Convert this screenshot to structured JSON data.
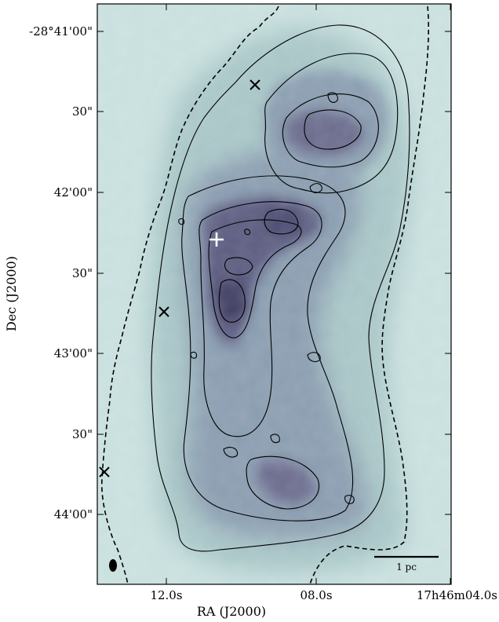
{
  "figure": {
    "y_axis_label": "Dec (J2000)",
    "x_axis_label": "RA (J2000)",
    "y_ticks": [
      "-28°41'00\"",
      "30\"",
      "42'00\"",
      "30\"",
      "43'00\"",
      "30\"",
      "44'00\""
    ],
    "x_ticks": [
      "12.0s",
      "08.0s",
      "17h46m04.0s"
    ],
    "scalebar_label": "1 pc",
    "colormap": {
      "background": "#c9e0df",
      "low": "#a9c6c7",
      "mid": "#8a9db0",
      "high": "#5c5c80",
      "peak": "#3f3c62"
    },
    "markers": [
      {
        "type": "x-cross",
        "color": "#000000"
      },
      {
        "type": "x-cross",
        "color": "#000000"
      },
      {
        "type": "x-cross",
        "color": "#000000"
      },
      {
        "type": "plus",
        "color": "#ffffff"
      }
    ],
    "beam": {
      "type": "ellipse",
      "color": "#000000"
    }
  }
}
